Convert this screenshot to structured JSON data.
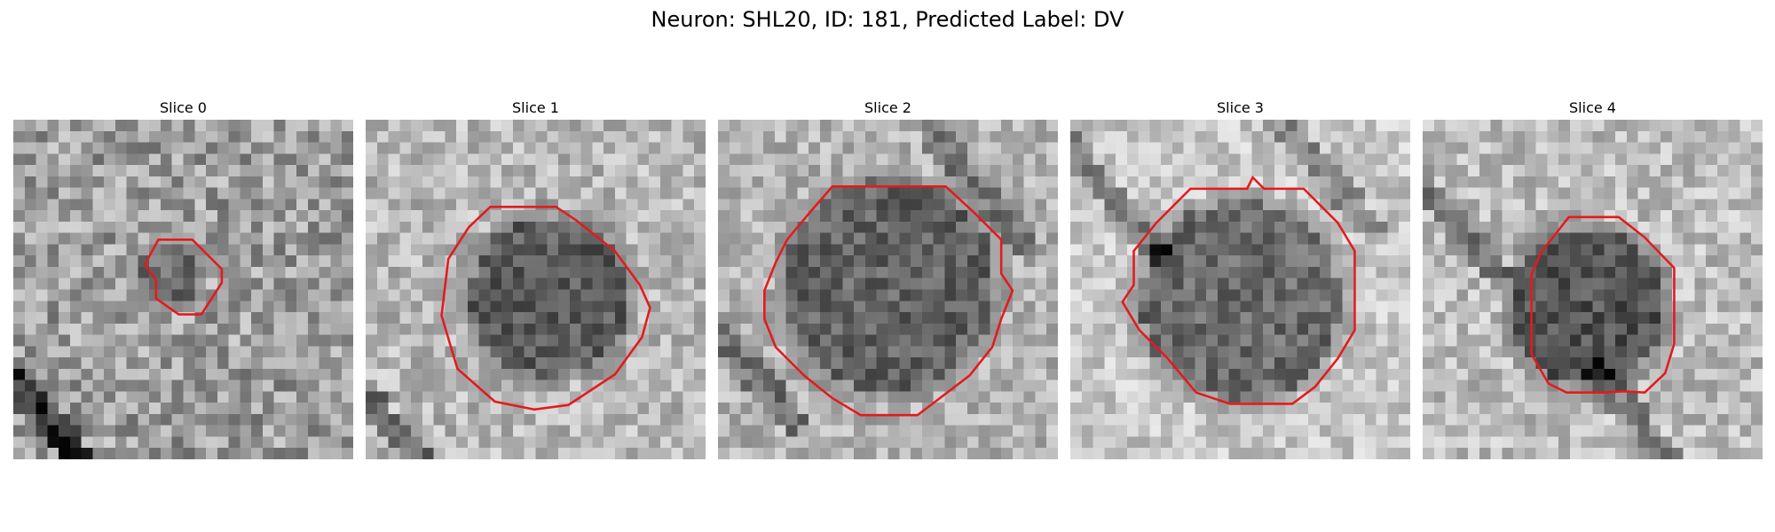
{
  "figure": {
    "title": "Neuron: SHL20, ID: 181, Predicted Label: DV"
  },
  "colors": {
    "contour": "#e41a1c",
    "background": "#ffffff"
  },
  "panels": [
    {
      "title": "Slice 0"
    },
    {
      "title": "Slice 1"
    },
    {
      "title": "Slice 2"
    },
    {
      "title": "Slice 3"
    },
    {
      "title": "Slice 4"
    }
  ]
}
